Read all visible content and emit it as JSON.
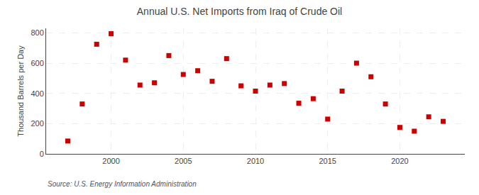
{
  "chart_data": {
    "type": "scatter",
    "title": "Annual U.S. Net Imports from Iraq of Crude Oil",
    "ylabel": "Thousand Barrels per Day",
    "annotations": [
      "Source: U.S. Energy Information Administration"
    ],
    "x": [
      1997,
      1998,
      1999,
      2000,
      2001,
      2002,
      2003,
      2004,
      2005,
      2006,
      2007,
      2008,
      2009,
      2010,
      2011,
      2012,
      2013,
      2014,
      2015,
      2016,
      2017,
      2018,
      2019,
      2020,
      2021,
      2022,
      2023
    ],
    "values": [
      85,
      330,
      725,
      795,
      620,
      455,
      470,
      650,
      525,
      550,
      480,
      630,
      450,
      415,
      455,
      465,
      335,
      365,
      230,
      415,
      600,
      510,
      330,
      175,
      150,
      245,
      215
    ],
    "color": "#cc0000",
    "marker": "square",
    "xlim": [
      1995.5,
      2024.5
    ],
    "ylim": [
      0,
      830
    ],
    "xticks": [
      2000,
      2005,
      2010,
      2015,
      2020
    ],
    "yticks": [
      0,
      200,
      400,
      600,
      800
    ],
    "grid": true
  }
}
